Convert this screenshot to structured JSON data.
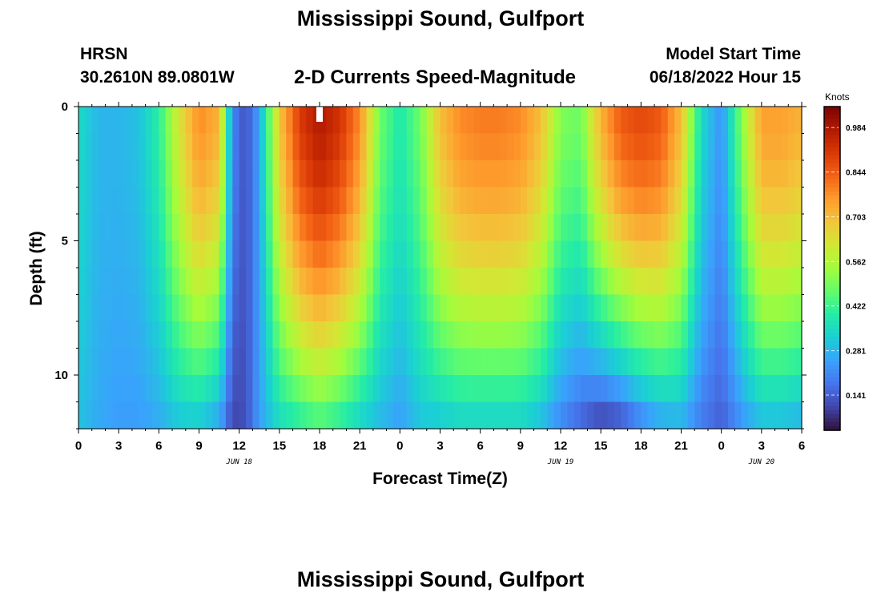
{
  "header": {
    "title": "Mississippi Sound, Gulfport",
    "station": "HRSN",
    "coords": "30.2610N  89.0801W",
    "subtitle": "2-D Currents Speed-Magnitude",
    "model_start_label": "Model Start Time",
    "model_start_value": "06/18/2022 Hour 15"
  },
  "footer": {
    "title": "Mississippi Sound, Gulfport"
  },
  "colorbar": {
    "unit": "Knots",
    "ticks": [
      "0.141",
      "0.281",
      "0.422",
      "0.562",
      "0.703",
      "0.844",
      "0.984"
    ],
    "tick_values": [
      0.141,
      0.281,
      0.422,
      0.562,
      0.703,
      0.844,
      0.984
    ],
    "range": [
      0.03,
      1.05
    ]
  },
  "colors": {
    "scale": [
      "#30123b",
      "#4145ab",
      "#4675ed",
      "#39a2fc",
      "#1bcfd4",
      "#24eca6",
      "#61fc6c",
      "#a4fc3b",
      "#d1e834",
      "#f3c63a",
      "#fe9b2d",
      "#f36315",
      "#d93806",
      "#b11901",
      "#7a0403"
    ]
  },
  "chart_data": {
    "type": "heatmap",
    "title": "2-D Currents Speed-Magnitude",
    "xlabel": "Forecast Time(Z)",
    "ylabel": "Depth (ft)",
    "x_ticks": [
      "0",
      "3",
      "6",
      "9",
      "12",
      "15",
      "18",
      "21",
      "0",
      "3",
      "6",
      "9",
      "12",
      "15",
      "18",
      "21",
      "0",
      "3",
      "6"
    ],
    "date_labels": [
      {
        "label": "JUN 18",
        "hour": 12
      },
      {
        "label": "JUN 19",
        "hour": 36
      },
      {
        "label": "JUN 20",
        "hour": 51
      }
    ],
    "y_ticks": [
      "0",
      "5",
      "10"
    ],
    "y_tick_values": [
      0,
      5,
      10
    ],
    "xlim_hours": [
      0,
      54
    ],
    "ylim_ft": [
      0,
      12
    ],
    "model_start_marker_hour": 18,
    "value_unit": "Knots",
    "estimated_speed_profile": {
      "hours": [
        0,
        1.5,
        3,
        4.5,
        6,
        7.5,
        9,
        10.5,
        11.5,
        12.5,
        13.5,
        15,
        16.5,
        18,
        19.5,
        21,
        22.5,
        24,
        25.5,
        27,
        28.5,
        30,
        31.5,
        33,
        34.5,
        36,
        37.5,
        39,
        40.5,
        42,
        43.5,
        45,
        46.5,
        48,
        49.5,
        51,
        52.5,
        54
      ],
      "surface_knots": [
        0.35,
        0.28,
        0.28,
        0.3,
        0.4,
        0.62,
        0.78,
        0.72,
        0.2,
        0.12,
        0.25,
        0.68,
        0.9,
        0.98,
        0.92,
        0.78,
        0.48,
        0.38,
        0.48,
        0.7,
        0.78,
        0.8,
        0.8,
        0.78,
        0.7,
        0.5,
        0.48,
        0.72,
        0.85,
        0.88,
        0.85,
        0.7,
        0.35,
        0.22,
        0.5,
        0.75,
        0.75,
        0.72
      ],
      "bottom_knots": [
        0.3,
        0.26,
        0.24,
        0.24,
        0.26,
        0.3,
        0.3,
        0.24,
        0.1,
        0.12,
        0.24,
        0.34,
        0.38,
        0.42,
        0.38,
        0.32,
        0.28,
        0.24,
        0.3,
        0.3,
        0.32,
        0.32,
        0.32,
        0.32,
        0.28,
        0.2,
        0.14,
        0.08,
        0.1,
        0.18,
        0.24,
        0.26,
        0.18,
        0.14,
        0.22,
        0.28,
        0.28,
        0.26
      ]
    }
  }
}
